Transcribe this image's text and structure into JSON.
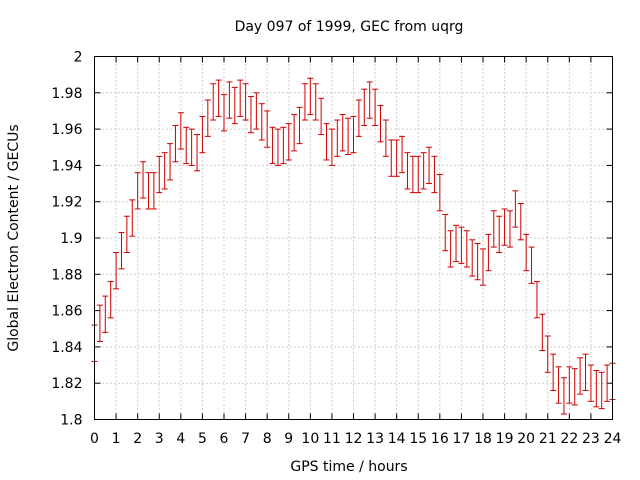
{
  "chart_data": {
    "type": "scatter",
    "title": "Day 097 of 1999, GEC from uqrg",
    "xlabel": "GPS time / hours",
    "ylabel": "Global Electron Content / GECUs",
    "xlim": [
      0,
      24
    ],
    "ylim": [
      1.8,
      2.0
    ],
    "grid": true,
    "color": "#cc0000",
    "xticks": [
      0,
      1,
      2,
      3,
      4,
      5,
      6,
      7,
      8,
      9,
      10,
      11,
      12,
      13,
      14,
      15,
      16,
      17,
      18,
      19,
      20,
      21,
      22,
      23,
      24
    ],
    "yticks": [
      1.8,
      1.82,
      1.84,
      1.86,
      1.88,
      1.9,
      1.92,
      1.94,
      1.96,
      1.98,
      2.0
    ],
    "ytick_labels": [
      "1.8",
      "1.82",
      "1.84",
      "1.86",
      "1.88",
      "1.9",
      "1.92",
      "1.94",
      "1.96",
      "1.98",
      "2"
    ],
    "error": 0.01,
    "x": [
      0.0,
      0.25,
      0.5,
      0.75,
      1.0,
      1.25,
      1.5,
      1.75,
      2.0,
      2.25,
      2.5,
      2.75,
      3.0,
      3.25,
      3.5,
      3.75,
      4.0,
      4.25,
      4.5,
      4.75,
      5.0,
      5.25,
      5.5,
      5.75,
      6.0,
      6.25,
      6.5,
      6.75,
      7.0,
      7.25,
      7.5,
      7.75,
      8.0,
      8.25,
      8.5,
      8.75,
      9.0,
      9.25,
      9.5,
      9.75,
      10.0,
      10.25,
      10.5,
      10.75,
      11.0,
      11.25,
      11.5,
      11.75,
      12.0,
      12.25,
      12.5,
      12.75,
      13.0,
      13.25,
      13.5,
      13.75,
      14.0,
      14.25,
      14.5,
      14.75,
      15.0,
      15.25,
      15.5,
      15.75,
      16.0,
      16.25,
      16.5,
      16.75,
      17.0,
      17.25,
      17.5,
      17.75,
      18.0,
      18.25,
      18.5,
      18.75,
      19.0,
      19.25,
      19.5,
      19.75,
      20.0,
      20.25,
      20.5,
      20.75,
      21.0,
      21.25,
      21.5,
      21.75,
      22.0,
      22.25,
      22.5,
      22.75,
      23.0,
      23.25,
      23.5,
      23.75,
      24.0
    ],
    "y": [
      1.842,
      1.853,
      1.858,
      1.866,
      1.882,
      1.893,
      1.902,
      1.911,
      1.926,
      1.932,
      1.926,
      1.926,
      1.935,
      1.937,
      1.942,
      1.952,
      1.959,
      1.951,
      1.95,
      1.947,
      1.957,
      1.966,
      1.975,
      1.977,
      1.969,
      1.976,
      1.973,
      1.977,
      1.975,
      1.968,
      1.97,
      1.964,
      1.96,
      1.951,
      1.95,
      1.951,
      1.953,
      1.958,
      1.962,
      1.975,
      1.978,
      1.975,
      1.967,
      1.953,
      1.95,
      1.955,
      1.958,
      1.956,
      1.957,
      1.966,
      1.972,
      1.976,
      1.972,
      1.963,
      1.955,
      1.944,
      1.944,
      1.946,
      1.937,
      1.935,
      1.935,
      1.937,
      1.94,
      1.935,
      1.925,
      1.903,
      1.894,
      1.897,
      1.896,
      1.894,
      1.889,
      1.887,
      1.884,
      1.892,
      1.905,
      1.902,
      1.906,
      1.905,
      1.916,
      1.909,
      1.892,
      1.885,
      1.866,
      1.848,
      1.836,
      1.826,
      1.819,
      1.813,
      1.819,
      1.818,
      1.824,
      1.826,
      1.82,
      1.817,
      1.816,
      1.82,
      1.821
    ]
  }
}
